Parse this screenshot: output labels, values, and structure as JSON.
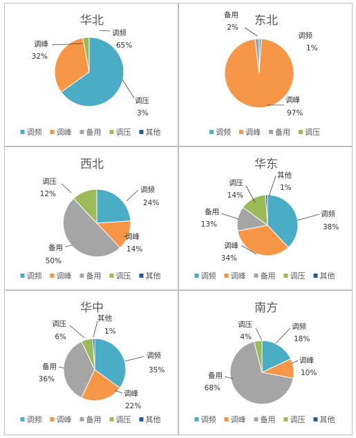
{
  "chart_data": [
    {
      "type": "pie",
      "title": "华北",
      "slices": [
        {
          "name": "调频",
          "value": 65,
          "label": "65%",
          "color": "#4bacc6"
        },
        {
          "name": "调峰",
          "value": 32,
          "label": "32%",
          "color": "#f79646"
        },
        {
          "name": "调压",
          "value": 3,
          "label": "3%",
          "color": "#9bbb59"
        }
      ],
      "legend": [
        "调频",
        "调峰",
        "备用",
        "调压",
        "其他"
      ],
      "legend_position": "bottom"
    },
    {
      "type": "pie",
      "title": "东北",
      "slices": [
        {
          "name": "调频",
          "value": 1,
          "label": "1%",
          "color": "#4bacc6"
        },
        {
          "name": "调峰",
          "value": 97,
          "label": "97%",
          "color": "#f79646"
        },
        {
          "name": "备用",
          "value": 2,
          "label": "2%",
          "color": "#a5a5a5"
        }
      ],
      "legend": [
        "调频",
        "调峰",
        "备用",
        "调压"
      ],
      "legend_position": "bottom"
    },
    {
      "type": "pie",
      "title": "西北",
      "slices": [
        {
          "name": "调频",
          "value": 24,
          "label": "24%",
          "color": "#4bacc6"
        },
        {
          "name": "调峰",
          "value": 14,
          "label": "14%",
          "color": "#f79646"
        },
        {
          "name": "备用",
          "value": 50,
          "label": "50%",
          "color": "#a5a5a5"
        },
        {
          "name": "调压",
          "value": 12,
          "label": "12%",
          "color": "#9bbb59"
        }
      ],
      "legend": [
        "调频",
        "调峰",
        "备用",
        "调压",
        "其他"
      ],
      "legend_position": "bottom"
    },
    {
      "type": "pie",
      "title": "华东",
      "slices": [
        {
          "name": "调频",
          "value": 38,
          "label": "38%",
          "color": "#4bacc6"
        },
        {
          "name": "调峰",
          "value": 34,
          "label": "34%",
          "color": "#f79646"
        },
        {
          "name": "备用",
          "value": 13,
          "label": "13%",
          "color": "#a5a5a5"
        },
        {
          "name": "调压",
          "value": 14,
          "label": "14%",
          "color": "#9bbb59"
        },
        {
          "name": "其他",
          "value": 1,
          "label": "1%",
          "color": "#1f5c99"
        }
      ],
      "legend": [
        "调频",
        "调峰",
        "备用",
        "调压",
        "其他"
      ],
      "legend_position": "bottom"
    },
    {
      "type": "pie",
      "title": "华中",
      "slices": [
        {
          "name": "调频",
          "value": 35,
          "label": "35%",
          "color": "#4bacc6"
        },
        {
          "name": "调峰",
          "value": 22,
          "label": "22%",
          "color": "#f79646"
        },
        {
          "name": "备用",
          "value": 36,
          "label": "36%",
          "color": "#a5a5a5"
        },
        {
          "name": "调压",
          "value": 6,
          "label": "6%",
          "color": "#9bbb59"
        },
        {
          "name": "其他",
          "value": 1,
          "label": "1%",
          "color": "#1f5c99"
        }
      ],
      "legend": [
        "调频",
        "调峰",
        "备用",
        "调压",
        "其他"
      ],
      "legend_position": "bottom"
    },
    {
      "type": "pie",
      "title": "南方",
      "slices": [
        {
          "name": "调频",
          "value": 18,
          "label": "18%",
          "color": "#4bacc6"
        },
        {
          "name": "调峰",
          "value": 10,
          "label": "10%",
          "color": "#f79646"
        },
        {
          "name": "备用",
          "value": 68,
          "label": "68%",
          "color": "#a5a5a5"
        },
        {
          "name": "调压",
          "value": 4,
          "label": "4%",
          "color": "#9bbb59"
        }
      ],
      "legend": [
        "调频",
        "调峰",
        "备用",
        "调压",
        "其他"
      ],
      "legend_position": "bottom"
    }
  ],
  "legend_colors": {
    "调频": "#4bacc6",
    "调峰": "#f79646",
    "备用": "#a5a5a5",
    "调压": "#9bbb59",
    "其他": "#1f5c99"
  }
}
